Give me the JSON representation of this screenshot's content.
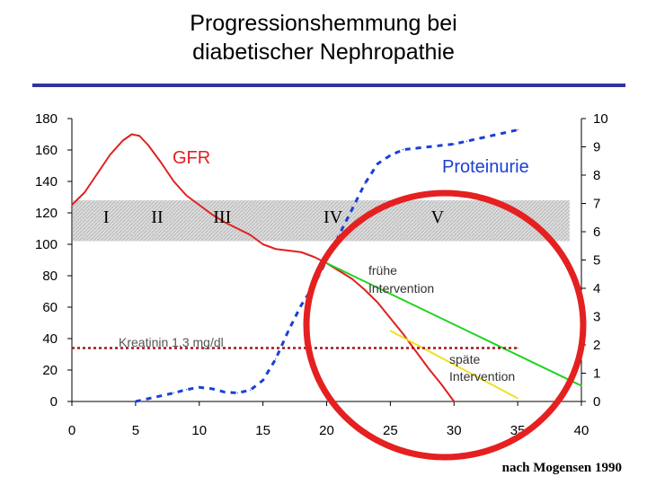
{
  "title_lines": [
    "Progressionshemmung bei",
    "diabetischer Nephropathie"
  ],
  "source": "nach Mogensen 1990",
  "chart_data": {
    "type": "line",
    "title": "Progressionshemmung bei diabetischer Nephropathie",
    "x_ticks": [
      "0",
      "5",
      "10",
      "15",
      "20",
      "25",
      "30",
      "35",
      "40"
    ],
    "y_left_ticks": [
      "0",
      "20",
      "40",
      "60",
      "80",
      "100",
      "120",
      "140",
      "160",
      "180"
    ],
    "y_right_ticks": [
      "0",
      "1",
      "2",
      "3",
      "4",
      "5",
      "6",
      "7",
      "8",
      "9",
      "10"
    ],
    "xlim": [
      0,
      40
    ],
    "ylim_left": [
      0,
      180
    ],
    "ylim_right": [
      0,
      10
    ],
    "grid": false,
    "legend": "none",
    "band": {
      "y_range": [
        102,
        128
      ],
      "x_range": [
        0,
        39
      ]
    },
    "stage_labels": [
      {
        "text": "I",
        "x": 2.7
      },
      {
        "text": "II",
        "x": 6.7
      },
      {
        "text": "III",
        "x": 11.8
      },
      {
        "text": "IV",
        "x": 20.5
      },
      {
        "text": "V",
        "x": 28.7
      }
    ],
    "series": [
      {
        "name": "GFR",
        "axis": "left",
        "color": "#e02020",
        "style": "solid",
        "x": [
          0,
          1,
          2,
          3,
          4,
          4.7,
          5.3,
          6,
          7,
          8,
          9,
          10,
          11,
          12,
          13,
          14,
          15,
          16,
          17,
          18,
          19,
          20,
          21,
          22,
          23,
          24,
          25,
          26,
          27,
          28,
          29,
          30
        ],
        "y": [
          125,
          133,
          145,
          157,
          166,
          170,
          169,
          163,
          152,
          140,
          131,
          125,
          119,
          114,
          110,
          106,
          100,
          97,
          96,
          95,
          92,
          88,
          83,
          78,
          71,
          63,
          53,
          43,
          32,
          21,
          11,
          0
        ]
      },
      {
        "name": "Proteinurie",
        "axis": "right",
        "color": "#1a3fd6",
        "style": "dotted",
        "x": [
          5,
          6,
          7,
          8,
          9,
          10,
          11,
          12,
          13,
          14,
          15,
          16,
          17,
          18,
          19,
          20,
          21,
          22,
          23,
          24,
          25,
          26,
          27,
          28,
          29,
          30,
          31,
          32,
          33,
          34,
          35
        ],
        "y": [
          0,
          0.1,
          0.2,
          0.3,
          0.42,
          0.5,
          0.45,
          0.33,
          0.3,
          0.4,
          0.75,
          1.5,
          2.5,
          3.4,
          4.1,
          5.0,
          5.9,
          6.8,
          7.7,
          8.4,
          8.7,
          8.9,
          8.95,
          9.0,
          9.05,
          9.1,
          9.2,
          9.3,
          9.4,
          9.5,
          9.6
        ]
      },
      {
        "name": "frühe Intervention",
        "axis": "left",
        "color": "#1fd21f",
        "style": "solid",
        "x": [
          20,
          40
        ],
        "y": [
          88,
          10
        ]
      },
      {
        "name": "späte Intervention",
        "axis": "left",
        "color": "#f0e020",
        "style": "solid",
        "x": [
          25,
          35
        ],
        "y": [
          45,
          2
        ]
      },
      {
        "name": "Kreatinin 1,3 mg/dl",
        "axis": "left",
        "color": "#a01818",
        "style": "dotted",
        "x": [
          0,
          35
        ],
        "y": [
          34,
          34
        ]
      }
    ],
    "annotations": [
      {
        "text": "GFR",
        "color": "#e02020"
      },
      {
        "text": "Proteinurie",
        "color": "#1a3fd6"
      },
      {
        "text": "frühe",
        "color": "#333333"
      },
      {
        "text": "Intervention",
        "color": "#333333"
      },
      {
        "text": "Kreatinin 1,3 mg/dl",
        "color": "#555555"
      },
      {
        "text": "späte",
        "color": "#333333"
      },
      {
        "text": "Intervention",
        "color": "#333333"
      }
    ]
  }
}
